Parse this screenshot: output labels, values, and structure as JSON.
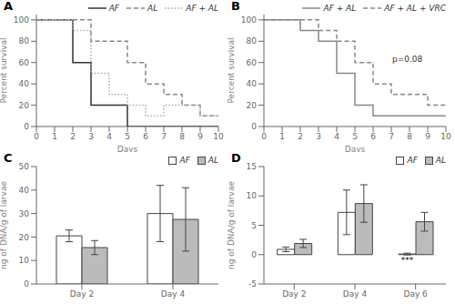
{
  "chart_data": [
    {
      "type": "step",
      "title": "A",
      "xlabel": "Days",
      "ylabel": "Percent survival",
      "xlim": [
        0,
        10
      ],
      "ylim": [
        0,
        105
      ],
      "xticks": [
        0,
        1,
        2,
        3,
        4,
        5,
        6,
        7,
        8,
        9,
        10
      ],
      "yticks": [
        0,
        20,
        40,
        60,
        80,
        100
      ],
      "legend": "upper right",
      "grid": false,
      "series": [
        {
          "name": "AF",
          "color": "#333333",
          "line_style": "solid",
          "x": [
            0,
            2,
            2,
            3,
            3,
            5,
            5,
            10
          ],
          "values": [
            100,
            100,
            60,
            60,
            20,
            20,
            0,
            0
          ]
        },
        {
          "name": "AL",
          "color": "#888888",
          "line_style": "dashed",
          "x": [
            0,
            3,
            3,
            4,
            4,
            5,
            5,
            6,
            6,
            7,
            7,
            8,
            8,
            9,
            9,
            10
          ],
          "values": [
            100,
            100,
            80,
            80,
            80,
            80,
            60,
            60,
            40,
            40,
            30,
            30,
            20,
            20,
            10,
            10
          ]
        },
        {
          "name": "AF + AL",
          "color": "#aaaaaa",
          "line_style": "dotted",
          "x": [
            0,
            2,
            2,
            3,
            3,
            4,
            4,
            5,
            5,
            6,
            6,
            7,
            7,
            8,
            8,
            9,
            9,
            10
          ],
          "values": [
            100,
            100,
            90,
            90,
            50,
            50,
            30,
            30,
            20,
            20,
            10,
            10,
            20,
            20,
            20,
            20,
            10,
            10
          ]
        }
      ]
    },
    {
      "type": "step",
      "title": "B",
      "xlabel": "Days",
      "ylabel": "Percent survival",
      "xlim": [
        0,
        10
      ],
      "ylim": [
        0,
        105
      ],
      "xticks": [
        0,
        1,
        2,
        3,
        4,
        5,
        6,
        7,
        8,
        9,
        10
      ],
      "yticks": [
        0,
        20,
        40,
        60,
        80,
        100
      ],
      "legend": "upper right",
      "grid": false,
      "annotations": [
        {
          "text": "p=0.08"
        }
      ],
      "series": [
        {
          "name": "AF + AL",
          "color": "#888888",
          "line_style": "solid",
          "x": [
            0,
            2,
            2,
            3,
            3,
            4,
            4,
            5,
            5,
            6,
            6,
            7,
            7,
            9,
            9,
            10
          ],
          "values": [
            100,
            100,
            90,
            90,
            80,
            80,
            50,
            50,
            20,
            20,
            10,
            10,
            10,
            10,
            10,
            10
          ]
        },
        {
          "name": "AF + AL + VRC",
          "color": "#888888",
          "line_style": "dashed",
          "x": [
            0,
            3,
            3,
            4,
            4,
            5,
            5,
            6,
            6,
            7,
            7,
            9,
            9,
            10
          ],
          "values": [
            100,
            100,
            90,
            90,
            80,
            80,
            60,
            60,
            40,
            40,
            30,
            30,
            20,
            20
          ]
        }
      ]
    },
    {
      "type": "bar",
      "title": "C",
      "ylabel": "ng of DNA/g of larvae",
      "categories": [
        "Day 2",
        "Day 4"
      ],
      "ylim": [
        0,
        50
      ],
      "yticks": [
        0,
        10,
        20,
        30,
        40,
        50
      ],
      "legend": "upper right",
      "grid": false,
      "series": [
        {
          "name": "AF",
          "color": "white",
          "values": [
            20.5,
            30.0
          ],
          "errors": [
            2.5,
            12.0
          ]
        },
        {
          "name": "AL",
          "color": "#bbbbbb",
          "values": [
            15.5,
            27.5
          ],
          "errors": [
            3.0,
            13.5
          ]
        }
      ]
    },
    {
      "type": "bar",
      "title": "D",
      "ylabel": "ng of DNA/g of larvae",
      "categories": [
        "Day 2",
        "Day 4",
        "Day 6"
      ],
      "ylim": [
        -5,
        15
      ],
      "yticks": [
        -5,
        0,
        5,
        10,
        15
      ],
      "legend": "upper right",
      "grid": false,
      "annotations": [
        {
          "text": "***",
          "category": "Day 6",
          "series": "AF"
        }
      ],
      "series": [
        {
          "name": "AF",
          "color": "white",
          "values": [
            0.9,
            7.2,
            0.1
          ],
          "errors": [
            0.4,
            3.8,
            0.15
          ]
        },
        {
          "name": "AL",
          "color": "#bbbbbb",
          "values": [
            1.9,
            8.7,
            5.6
          ],
          "errors": [
            0.7,
            3.2,
            1.6
          ]
        }
      ]
    }
  ]
}
